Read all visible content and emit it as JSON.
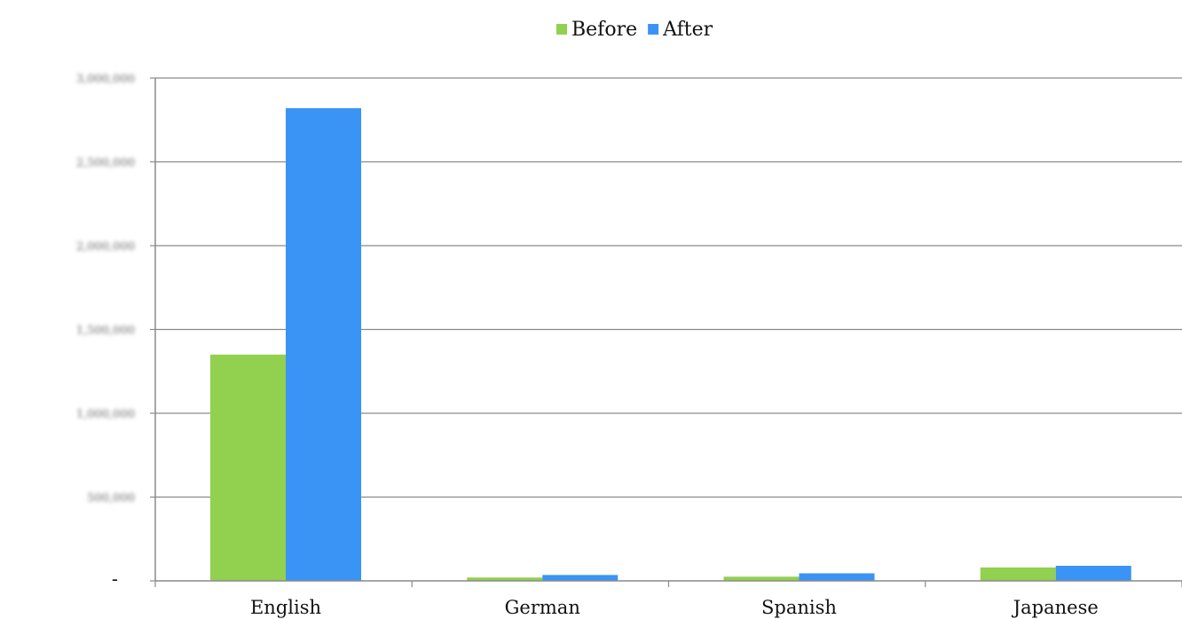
{
  "chart_data": {
    "type": "bar",
    "title": "",
    "xlabel": "",
    "ylabel": "",
    "categories": [
      "English",
      "German",
      "Spanish",
      "Japanese"
    ],
    "series": [
      {
        "name": "Before",
        "color": "#92d050",
        "values": [
          1350000,
          20000,
          25000,
          80000
        ]
      },
      {
        "name": "After",
        "color": "#3a94f5",
        "values": [
          2820000,
          35000,
          45000,
          90000
        ]
      }
    ],
    "ylim": [
      0,
      3000000
    ],
    "yticks": [
      0,
      500000,
      1000000,
      1500000,
      2000000,
      2500000,
      3000000
    ],
    "ytick_labels": [
      "-",
      "500,000",
      "1,000,000",
      "1,500,000",
      "2,000,000",
      "2,500,000",
      "3,000,000"
    ],
    "grid": true,
    "legend_position": "top-center"
  }
}
